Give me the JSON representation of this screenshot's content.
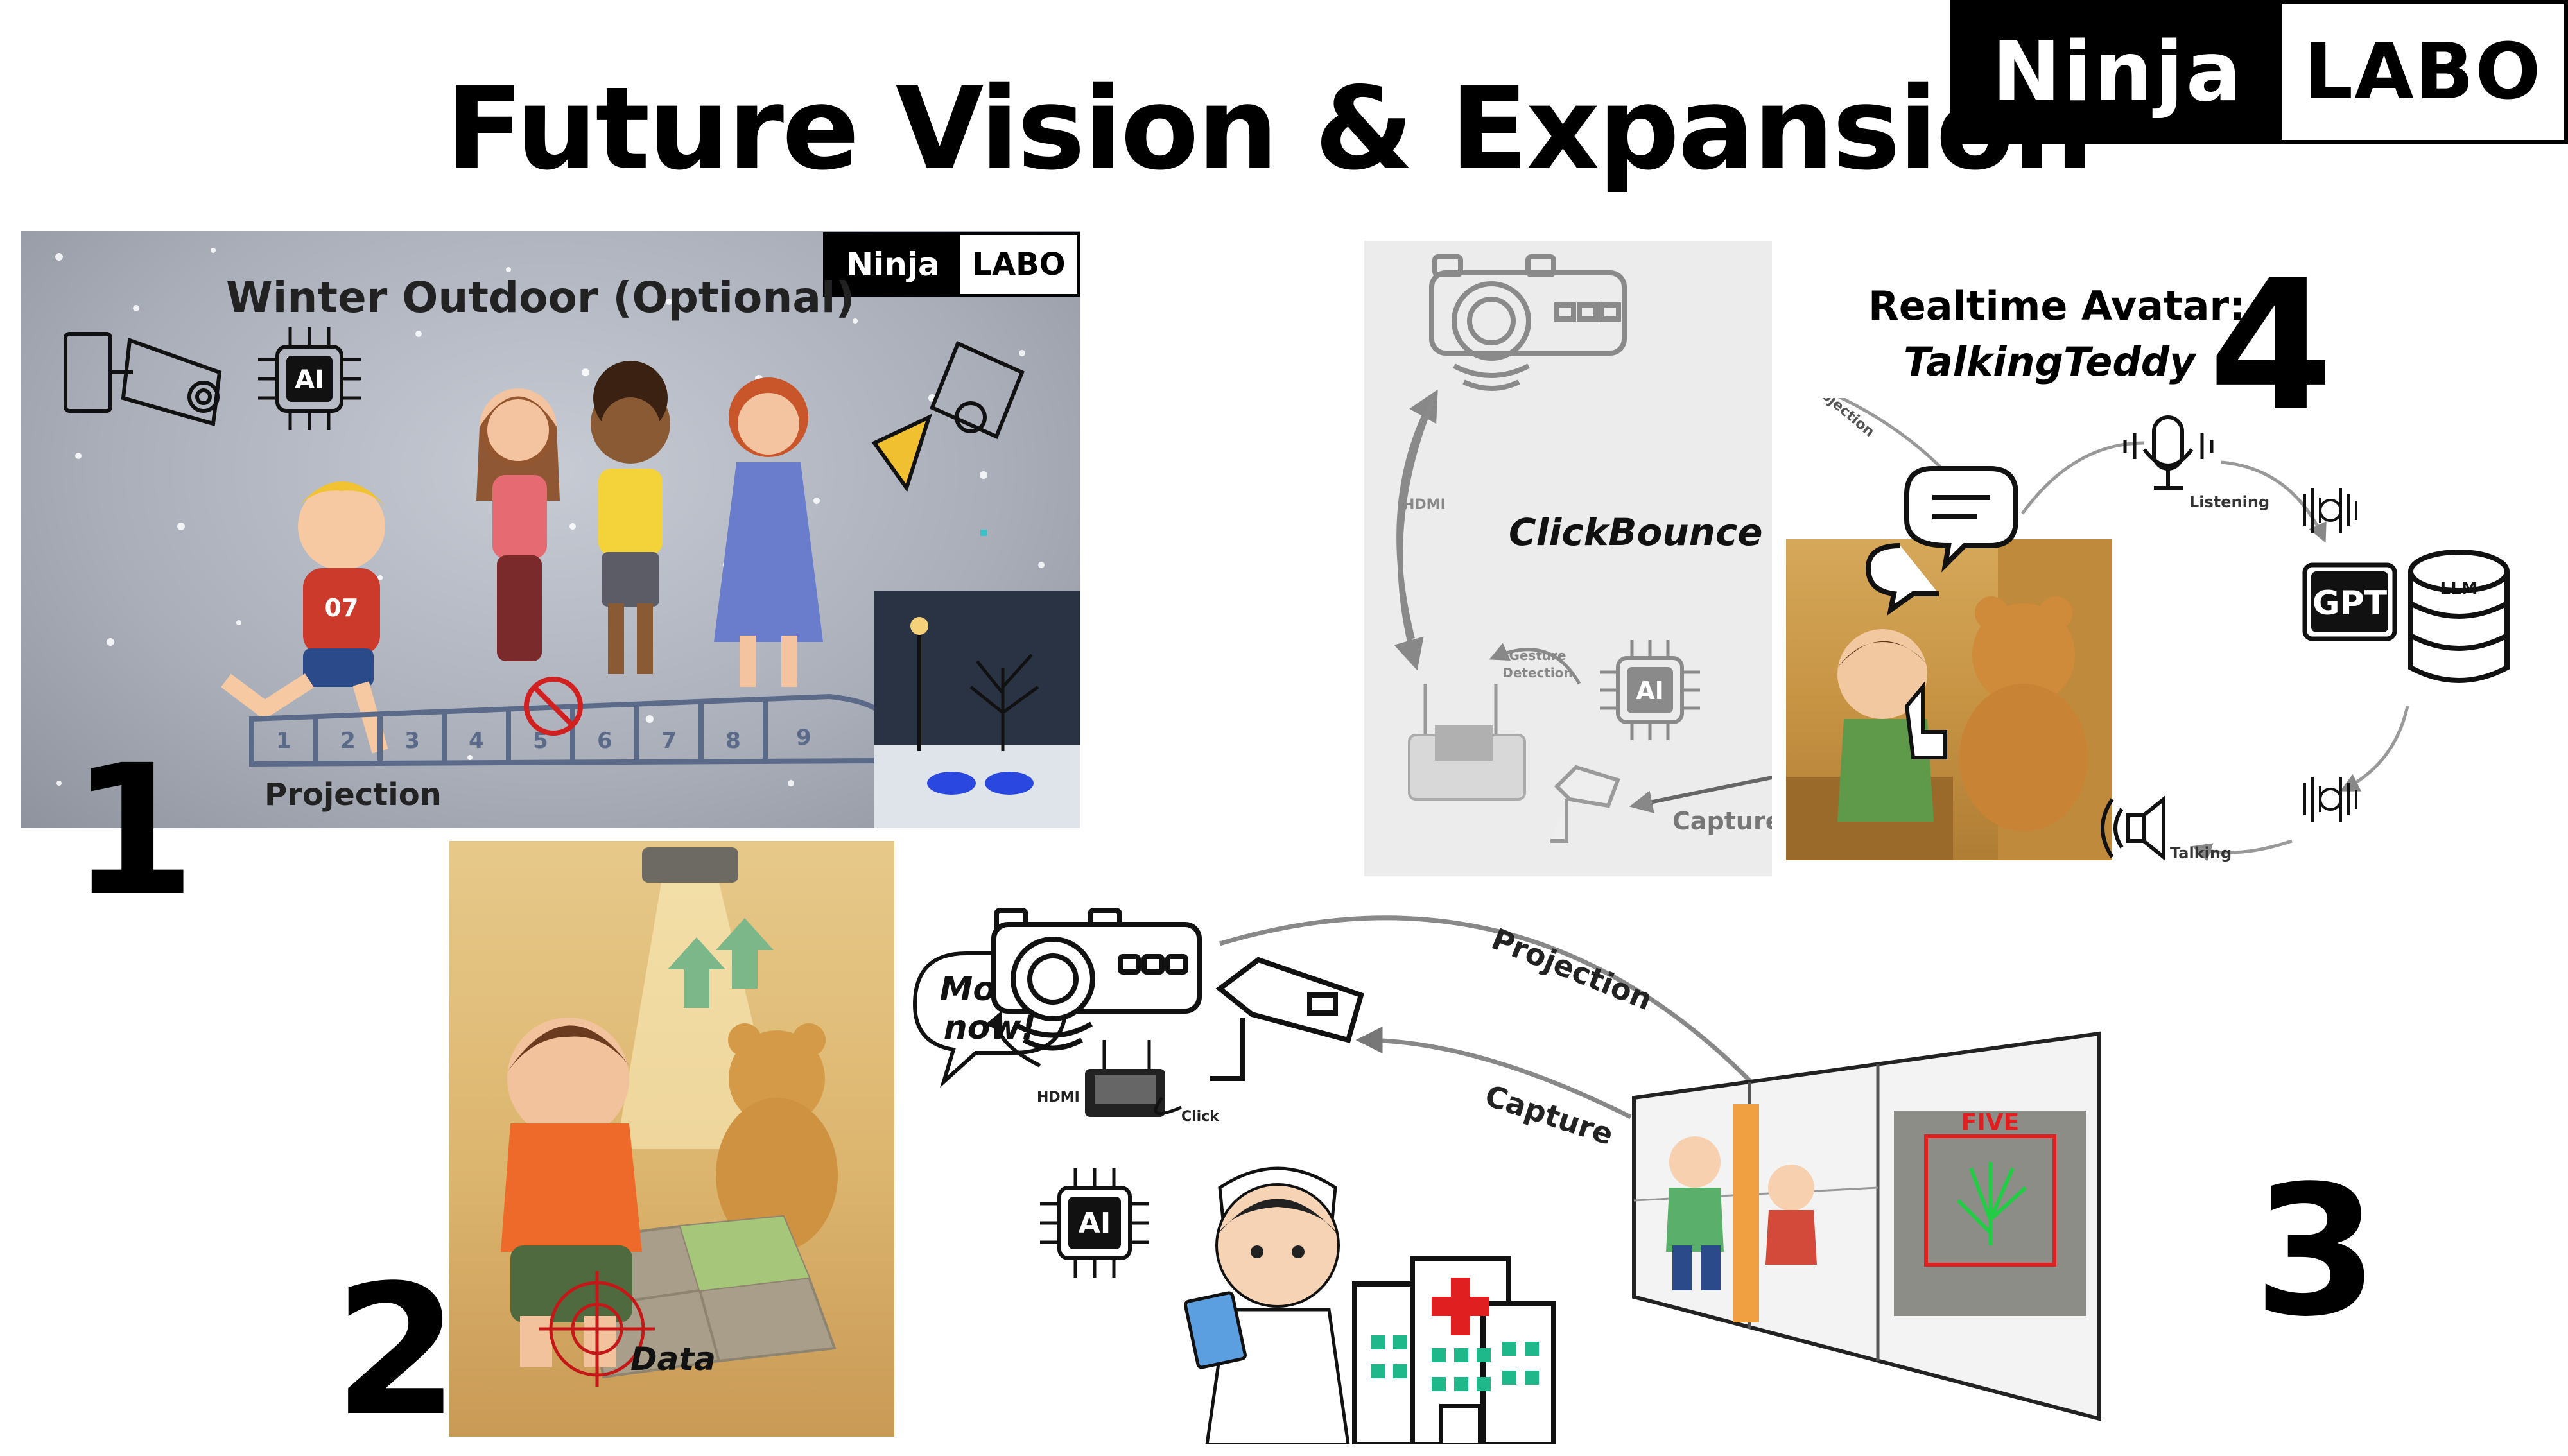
{
  "title": "Future Vision & Expansion",
  "logo": {
    "ninja": "Ninja",
    "labo": "LABO"
  },
  "numbers": {
    "one": "1",
    "two": "2",
    "three": "3",
    "four": "4"
  },
  "panel_1": {
    "title": "Winter Outdoor (Optional)",
    "caption": "Projection",
    "jersey_number": "07",
    "hopscotch_numbers": [
      "1",
      "2",
      "3",
      "4",
      "5",
      "6",
      "7",
      "8",
      "9"
    ]
  },
  "panel_2": {
    "speech_bubble_line1": "Move",
    "speech_bubble_line2": "now!",
    "target_label": "Data"
  },
  "panel_3": {
    "projection_label": "Projection",
    "capture_label": "Capture",
    "hdmi_label": "HDMI",
    "click_label": "Click",
    "gesture_result": "FIVE",
    "ai_chip_label": "AI"
  },
  "panel_4": {
    "title_line1": "Realtime Avatar:",
    "title_line2": "TalkingTeddy",
    "clickbounce_label": "ClickBounce",
    "hdmi_label": "HDMI",
    "projection_label": "Projection",
    "gesture_label_line1": "Gesture",
    "gesture_label_line2": "Detection",
    "capture_label": "Capture",
    "listening_label": "Listening",
    "talking_label": "Talking",
    "gpt_label": "GPT",
    "llm_label": "LLM",
    "ai_chip_label": "AI"
  }
}
